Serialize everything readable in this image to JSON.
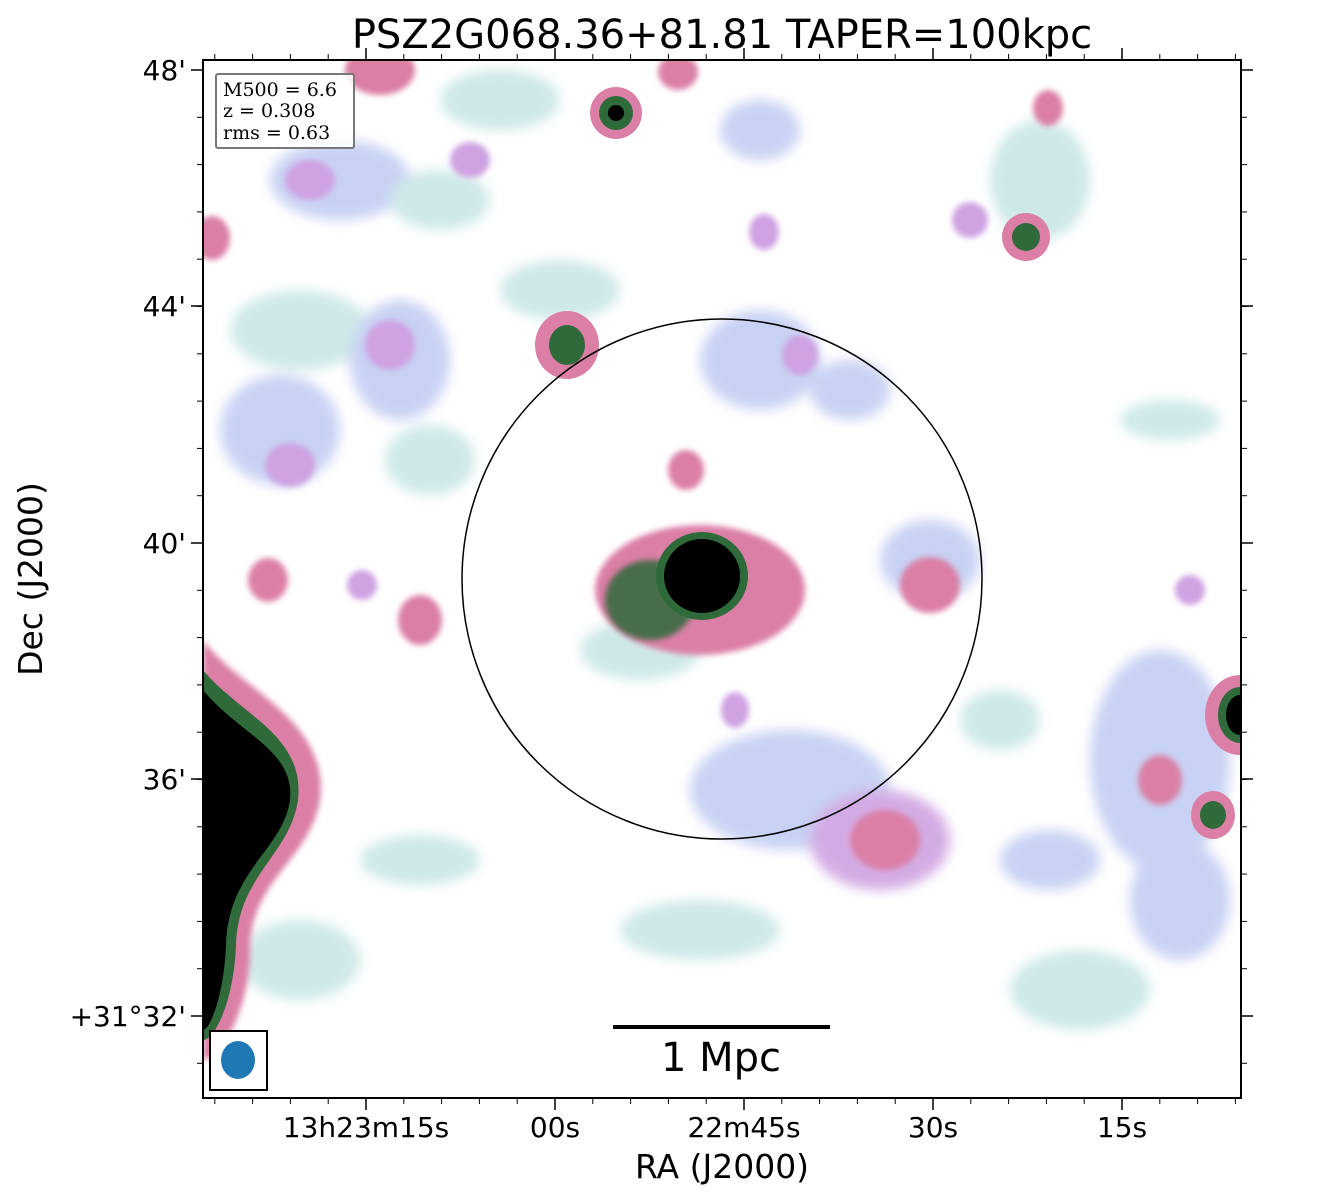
{
  "title": "PSZ2G068.36+81.81 TAPER=100kpc",
  "x_axis_label": "RA (J2000)",
  "y_axis_label": "Dec (J2000)",
  "x_ticks": [
    "13h23m15s",
    "00s",
    "22m45s",
    "30s",
    "15s"
  ],
  "y_ticks": [
    "48'",
    "44'",
    "40'",
    "36'",
    "+31°32'"
  ],
  "info_box": {
    "mass_text": "M500 = 6.6",
    "redshift_text": "z = 0.308",
    "rms_text": "rms = 0.63"
  },
  "scale_bar_label": "1 Mpc",
  "colors": {
    "faint": "#c9e6e6",
    "light_blue": "#c2cdf2",
    "violet": "#cfa2e2",
    "pink": "#db7fa6",
    "green": "#2f6b3a",
    "core": "#000000",
    "beam": "#1f77b4"
  }
}
